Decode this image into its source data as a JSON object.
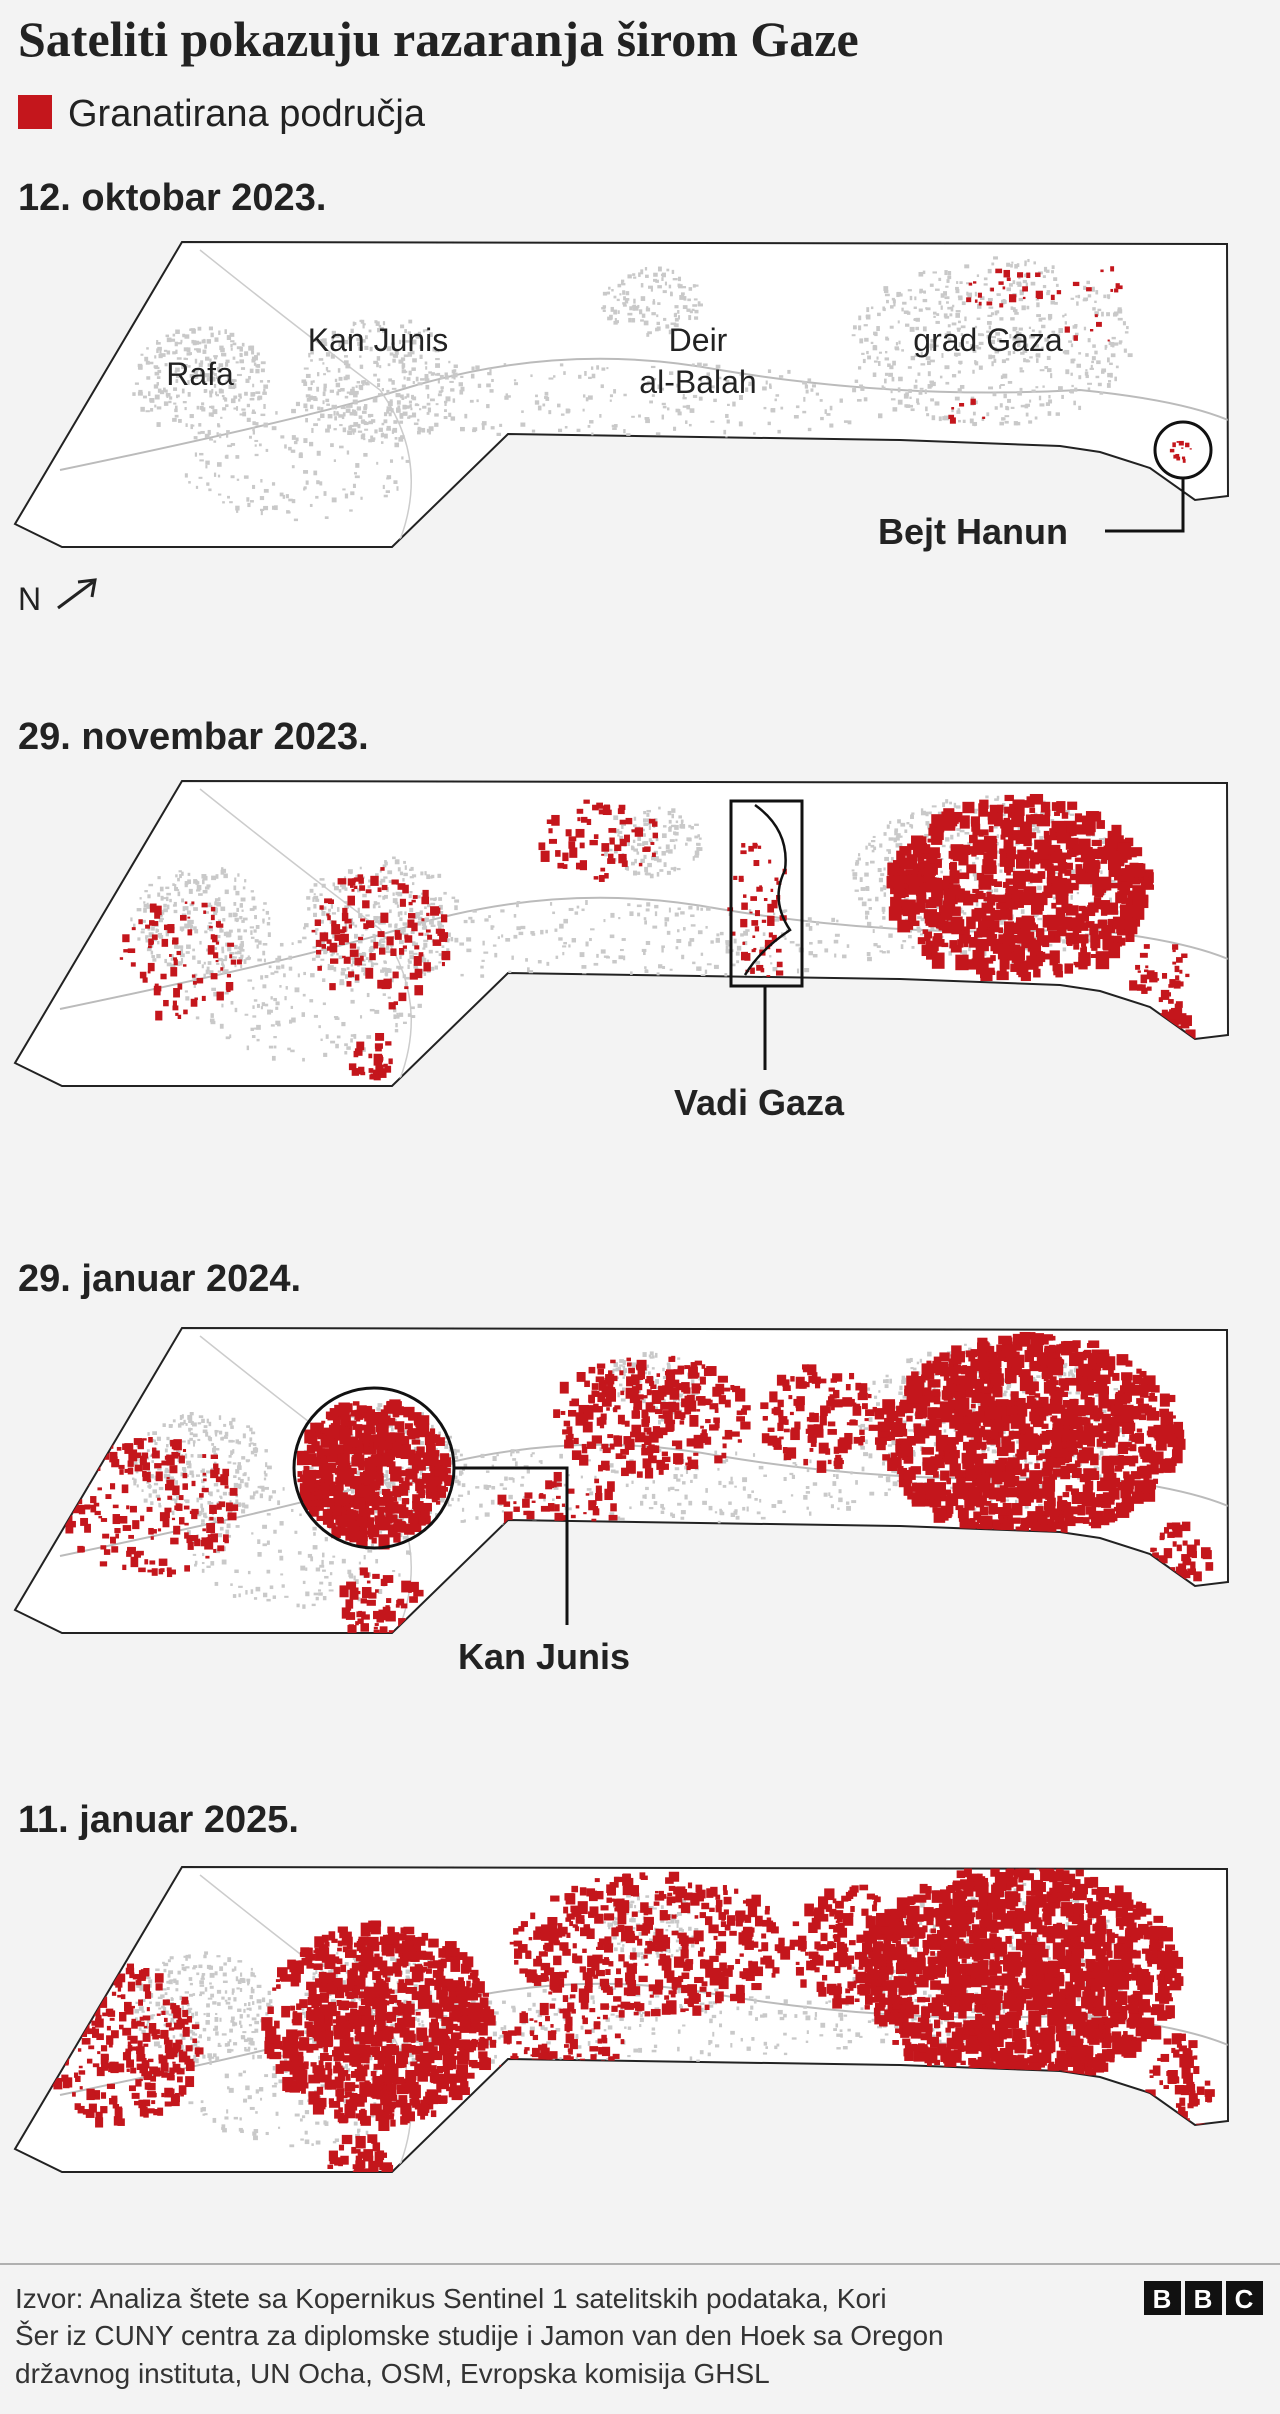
{
  "header": {
    "title": "Sateliti pokazuju razaranja širom Gaze"
  },
  "legend": {
    "label": "Granatirana područja"
  },
  "panels": [
    {
      "date": "12. oktobar 2023.",
      "places": [
        "Rafa",
        "Kan Junis",
        "Deir",
        "al-Balah",
        "grad Gaza"
      ],
      "annotation": "Bejt Hanun",
      "north": "N"
    },
    {
      "date": "29. novembar 2023.",
      "annotation": "Vadi Gaza"
    },
    {
      "date": "29. januar 2024.",
      "annotation": "Kan Junis"
    },
    {
      "date": "11. januar 2025."
    }
  ],
  "source": {
    "lines": [
      "Izvor: Analiza štete sa Kopernikus Sentinel 1 satelitskih podataka, Kori",
      "Šer iz CUNY centra za diplomske studije i Jamon van den Hoek sa Oregon",
      "državnog instituta, UN Ocha, OSM, Evropska komisija GHSL"
    ]
  },
  "logo": [
    "B",
    "B",
    "C"
  ]
}
